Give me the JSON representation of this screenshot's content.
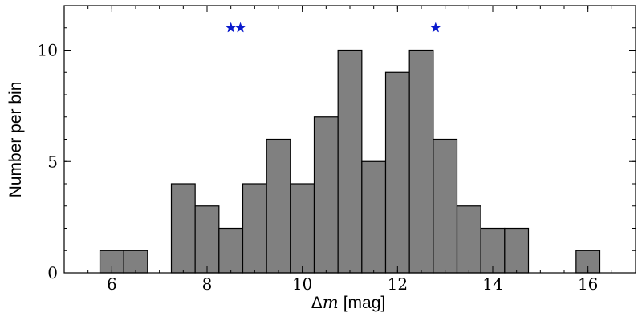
{
  "chart_data": {
    "type": "bar",
    "subtype": "histogram",
    "xlabel_symbol": "Δ",
    "xlabel_var": "m",
    "xlabel_unit": "[mag]",
    "ylabel": "Number per bin",
    "xlim": [
      5,
      17
    ],
    "ylim": [
      0,
      12
    ],
    "bin_width": 0.5,
    "x_ticks": [
      6,
      8,
      10,
      12,
      14,
      16
    ],
    "y_ticks": [
      0,
      5,
      10
    ],
    "x_minor_step": 0.5,
    "y_minor_step": 1,
    "bins": [
      {
        "start": 5.75,
        "end": 6.25,
        "count": 1
      },
      {
        "start": 6.25,
        "end": 6.75,
        "count": 1
      },
      {
        "start": 7.25,
        "end": 7.75,
        "count": 4
      },
      {
        "start": 7.75,
        "end": 8.25,
        "count": 3
      },
      {
        "start": 8.25,
        "end": 8.75,
        "count": 2
      },
      {
        "start": 8.75,
        "end": 9.25,
        "count": 4
      },
      {
        "start": 9.25,
        "end": 9.75,
        "count": 6
      },
      {
        "start": 9.75,
        "end": 10.25,
        "count": 4
      },
      {
        "start": 10.25,
        "end": 10.75,
        "count": 7
      },
      {
        "start": 10.75,
        "end": 11.25,
        "count": 10
      },
      {
        "start": 11.25,
        "end": 11.75,
        "count": 5
      },
      {
        "start": 11.75,
        "end": 12.25,
        "count": 9
      },
      {
        "start": 12.25,
        "end": 12.75,
        "count": 10
      },
      {
        "start": 12.75,
        "end": 13.25,
        "count": 6
      },
      {
        "start": 13.25,
        "end": 13.75,
        "count": 3
      },
      {
        "start": 13.75,
        "end": 14.25,
        "count": 2
      },
      {
        "start": 14.25,
        "end": 14.75,
        "count": 2
      },
      {
        "start": 15.75,
        "end": 16.25,
        "count": 1
      }
    ],
    "markers": [
      {
        "x": 8.5,
        "y": 11,
        "shape": "star"
      },
      {
        "x": 8.7,
        "y": 11,
        "shape": "star"
      },
      {
        "x": 12.8,
        "y": 11,
        "shape": "star"
      }
    ],
    "grid": false,
    "colors": {
      "bar_fill": "#808080",
      "bar_edge": "#000000",
      "marker": "#0a1acd"
    }
  }
}
